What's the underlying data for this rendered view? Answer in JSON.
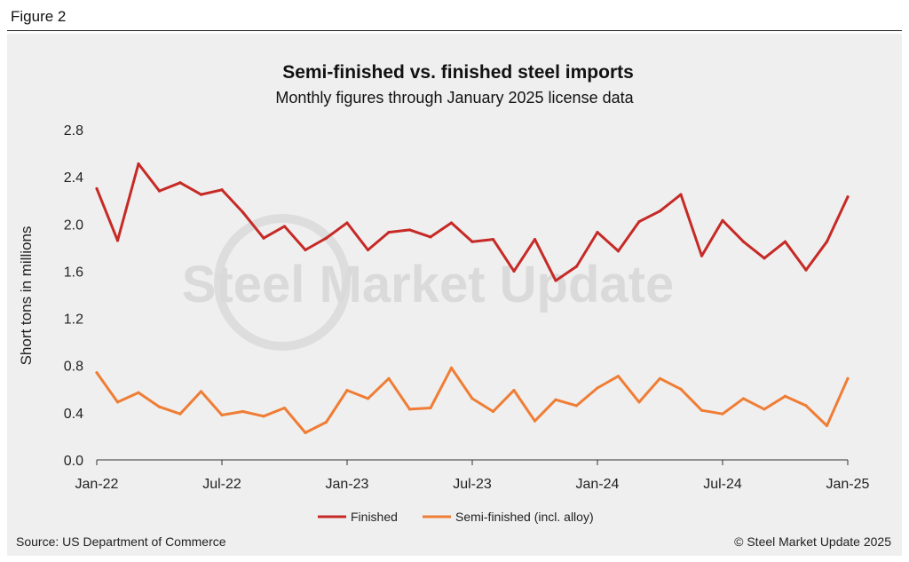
{
  "figure_label": "Figure 2",
  "source": "Source: US Department of Commerce",
  "copyright": "© Steel Market Update 2025",
  "watermark": "Steel Market Update",
  "colors": {
    "finished": "#c62a26",
    "semi": "#ef7d35",
    "background": "#efefef"
  },
  "chart_data": {
    "type": "line",
    "title": "Semi-finished vs. finished steel imports",
    "subtitle": "Monthly figures through January 2025 license data",
    "xlabel": "",
    "ylabel": "Short tons in millions",
    "ylim": [
      0,
      2.8
    ],
    "yticks": [
      "0.0",
      "0.4",
      "0.8",
      "1.2",
      "1.6",
      "2.0",
      "2.4",
      "2.8"
    ],
    "x": [
      "Jan-22",
      "Feb-22",
      "Mar-22",
      "Apr-22",
      "May-22",
      "Jun-22",
      "Jul-22",
      "Aug-22",
      "Sep-22",
      "Oct-22",
      "Nov-22",
      "Dec-22",
      "Jan-23",
      "Feb-23",
      "Mar-23",
      "Apr-23",
      "May-23",
      "Jun-23",
      "Jul-23",
      "Aug-23",
      "Sep-23",
      "Oct-23",
      "Nov-23",
      "Dec-23",
      "Jan-24",
      "Feb-24",
      "Mar-24",
      "Apr-24",
      "May-24",
      "Jun-24",
      "Jul-24",
      "Aug-24",
      "Sep-24",
      "Oct-24",
      "Nov-24",
      "Dec-24",
      "Jan-25"
    ],
    "xtick_labels": [
      "Jan-22",
      "Jul-22",
      "Jan-23",
      "Jul-23",
      "Jan-24",
      "Jul-24",
      "Jan-25"
    ],
    "xtick_index": [
      0,
      6,
      12,
      18,
      24,
      30,
      36
    ],
    "legend_position": "bottom-center",
    "grid": false,
    "series": [
      {
        "name": "Finished",
        "key": "finished",
        "values": [
          2.3,
          1.86,
          2.51,
          2.28,
          2.35,
          2.25,
          2.29,
          2.1,
          1.88,
          1.98,
          1.78,
          1.88,
          2.01,
          1.78,
          1.93,
          1.95,
          1.89,
          2.01,
          1.85,
          1.87,
          1.6,
          1.87,
          1.52,
          1.64,
          1.93,
          1.77,
          2.02,
          2.11,
          2.25,
          1.73,
          2.03,
          1.85,
          1.71,
          1.85,
          1.61,
          1.85,
          2.23
        ]
      },
      {
        "name": "Semi-finished (incl. alloy)",
        "key": "semi",
        "values": [
          0.74,
          0.49,
          0.57,
          0.45,
          0.39,
          0.58,
          0.38,
          0.41,
          0.37,
          0.44,
          0.23,
          0.32,
          0.59,
          0.52,
          0.69,
          0.43,
          0.44,
          0.78,
          0.52,
          0.41,
          0.59,
          0.33,
          0.51,
          0.46,
          0.61,
          0.71,
          0.49,
          0.69,
          0.6,
          0.42,
          0.39,
          0.52,
          0.43,
          0.54,
          0.46,
          0.29,
          0.69
        ]
      }
    ]
  }
}
